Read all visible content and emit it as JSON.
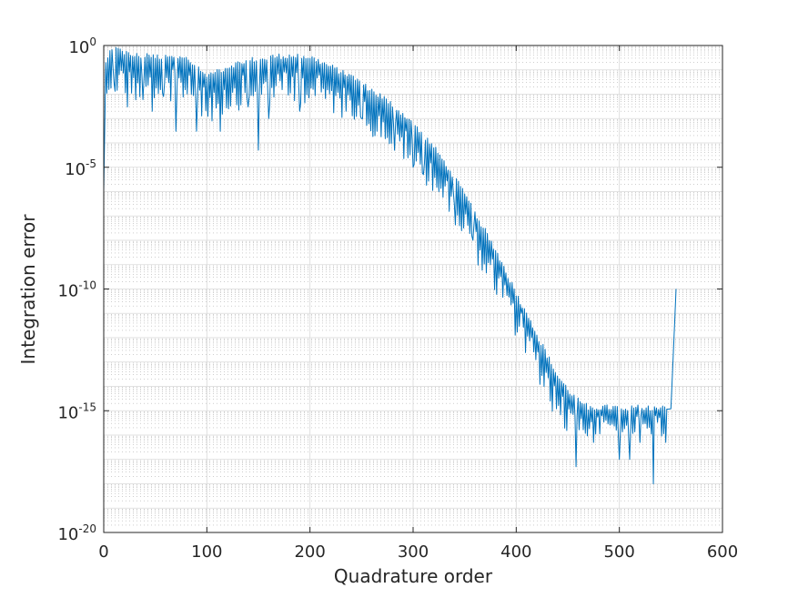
{
  "chart_data": {
    "type": "line",
    "title": "",
    "xlabel": "Quadrature order",
    "ylabel": "Integration error",
    "xlim": [
      0,
      600
    ],
    "ylim": [
      1e-20,
      1
    ],
    "yscale": "log",
    "grid": true,
    "minor_grid": true,
    "x_ticks": [
      {
        "value": 0,
        "label": "0"
      },
      {
        "value": 100,
        "label": "100"
      },
      {
        "value": 200,
        "label": "200"
      },
      {
        "value": 300,
        "label": "300"
      },
      {
        "value": 400,
        "label": "400"
      },
      {
        "value": 500,
        "label": "500"
      },
      {
        "value": 600,
        "label": "600"
      }
    ],
    "y_ticks": [
      {
        "value": 1,
        "base": "10",
        "exp": "0"
      },
      {
        "value": 1e-05,
        "base": "10",
        "exp": "-5"
      },
      {
        "value": 1e-10,
        "base": "10",
        "exp": "-10"
      },
      {
        "value": 1e-15,
        "base": "10",
        "exp": "-15"
      },
      {
        "value": 1e-20,
        "base": "10",
        "exp": "-20"
      }
    ],
    "series": [
      {
        "color": "#0072bd",
        "envelope_x": [
          0,
          2,
          10,
          25,
          50,
          75,
          100,
          125,
          150,
          175,
          200,
          225,
          250,
          275,
          300,
          320,
          340,
          360,
          380,
          400,
          420,
          440,
          455,
          470,
          490,
          510,
          530,
          550,
          553,
          555
        ],
        "envelope_y": [
          1e-06,
          0.2,
          0.6,
          0.3,
          0.25,
          0.3,
          0.04,
          0.12,
          0.22,
          0.28,
          0.25,
          0.08,
          0.02,
          0.004,
          0.0005,
          5e-05,
          3e-06,
          1e-07,
          3e-09,
          5e-11,
          1e-12,
          2e-14,
          3e-15,
          1e-15,
          1e-15,
          1e-15,
          1e-15,
          1.2e-15,
          1e-12,
          1e-10
        ],
        "dips_x": [
          10,
          23,
          38,
          47,
          58,
          70,
          85,
          90,
          113,
          140,
          150,
          160,
          190,
          235,
          250,
          265,
          282,
          300,
          310,
          325,
          340,
          358,
          375,
          405,
          427,
          458,
          475,
          500,
          510,
          520,
          533,
          545
        ],
        "dips_y": [
          0.03,
          0.003,
          0.006,
          0.002,
          0.008,
          0.0003,
          0.01,
          0.0003,
          0.0003,
          0.003,
          5e-05,
          0.001,
          0.002,
          0.002,
          0.001,
          0.0003,
          5e-05,
          1e-05,
          5e-06,
          1e-06,
          3e-07,
          1e-08,
          1e-09,
          1e-11,
          1e-14,
          5e-18,
          5e-17,
          1e-17,
          1e-17,
          5e-17,
          1e-18,
          5e-17
        ]
      }
    ]
  }
}
